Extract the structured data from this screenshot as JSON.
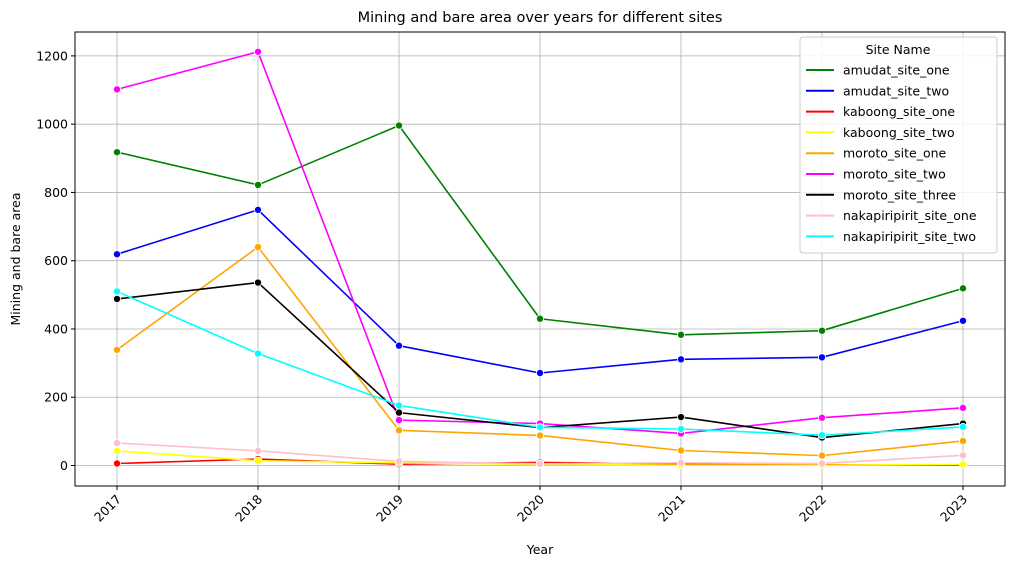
{
  "chart_data": {
    "type": "line",
    "title": "Mining and bare area over years for different sites",
    "xlabel": "Year",
    "ylabel": "Mining and bare area",
    "x": [
      2017,
      2018,
      2019,
      2020,
      2021,
      2022,
      2023
    ],
    "x_ticks": [
      "2017",
      "2018",
      "2019",
      "2020",
      "2021",
      "2022",
      "2023"
    ],
    "y_ticks": [
      "0",
      "200",
      "400",
      "600",
      "800",
      "1000",
      "1200"
    ],
    "ylim": [
      -60,
      1270
    ],
    "grid": true,
    "legend": {
      "title": "Site Name",
      "placement": "top-right"
    },
    "series": [
      {
        "name": "amudat_site_one",
        "color": "#008000",
        "values": [
          918,
          822,
          996,
          430,
          383,
          395,
          519
        ]
      },
      {
        "name": "amudat_site_two",
        "color": "#0000ff",
        "values": [
          619,
          749,
          351,
          271,
          311,
          317,
          424
        ]
      },
      {
        "name": "kaboong_site_one",
        "color": "#ff0000",
        "values": [
          6,
          19,
          4,
          9,
          4,
          2,
          1
        ]
      },
      {
        "name": "kaboong_site_two",
        "color": "#ffff00",
        "values": [
          43,
          14,
          8,
          3,
          1,
          1,
          3
        ]
      },
      {
        "name": "moroto_site_one",
        "color": "#ffa500",
        "values": [
          339,
          640,
          103,
          88,
          44,
          29,
          72
        ]
      },
      {
        "name": "moroto_site_two",
        "color": "#ff00ff",
        "values": [
          1102,
          1212,
          133,
          123,
          94,
          140,
          169
        ]
      },
      {
        "name": "moroto_site_three",
        "color": "#000000",
        "values": [
          488,
          536,
          155,
          111,
          142,
          82,
          123
        ]
      },
      {
        "name": "nakapiripirit_site_one",
        "color": "#ffc0cb",
        "values": [
          66,
          43,
          12,
          5,
          8,
          6,
          30
        ]
      },
      {
        "name": "nakapiripirit_site_two",
        "color": "#00ffff",
        "values": [
          510,
          328,
          176,
          112,
          107,
          89,
          113
        ]
      }
    ]
  }
}
